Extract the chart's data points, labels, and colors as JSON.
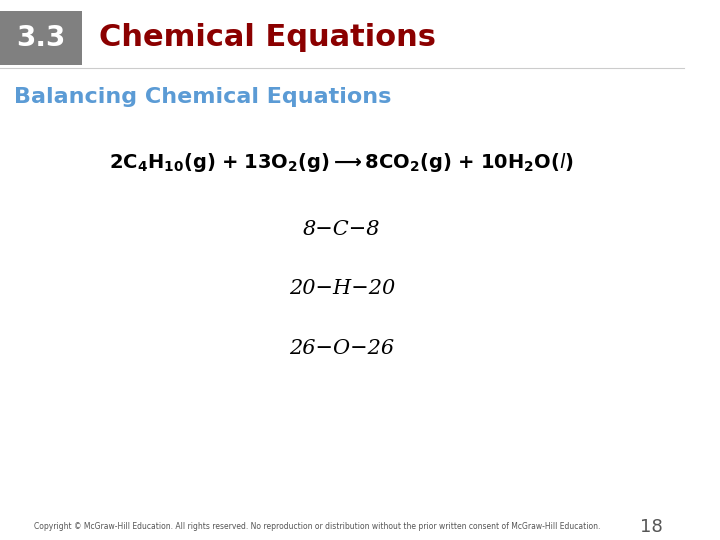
{
  "header_box_color": "#808080",
  "header_number": "3.3",
  "header_number_color": "#ffffff",
  "header_title": "Chemical Equations",
  "header_title_color": "#8b0000",
  "subtitle": "Balancing Chemical Equations",
  "subtitle_color": "#5b9bd5",
  "background_color": "#ffffff",
  "balance_lines": [
    "8−C−8",
    "20−H−20",
    "26−O−26"
  ],
  "footer_text": "Copyright © McGraw-Hill Education. All rights reserved. No reproduction or distribution without the prior written consent of McGraw-Hill Education.",
  "footer_page": "18",
  "footer_color": "#555555",
  "equation_color": "#000000",
  "balance_color": "#000000",
  "header_line_color": "#cccccc"
}
